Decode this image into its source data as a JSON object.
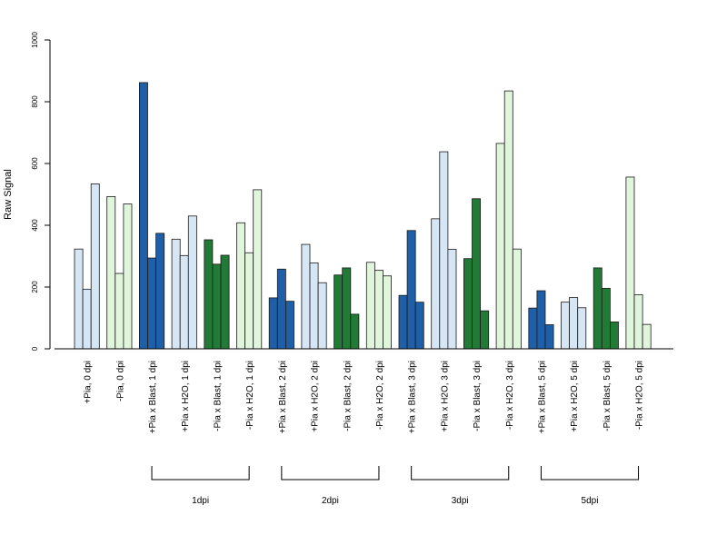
{
  "chart_data": {
    "type": "bar",
    "ylabel": "Raw Signal",
    "xlabel": "",
    "ylim": [
      0,
      1000
    ],
    "yticks": [
      0,
      200,
      400,
      600,
      800,
      1000
    ],
    "colors": {
      "plus_blast": "#1f5fa8",
      "plus_h2o": "#d6e6f5",
      "minus_blast": "#217a35",
      "minus_h2o": "#e0f5dc"
    },
    "groups": [
      {
        "label": "+Pia, 0 dpi",
        "color_key": "plus_h2o",
        "values": [
          323,
          193,
          534
        ]
      },
      {
        "label": "-Pia, 0 dpi",
        "color_key": "minus_h2o",
        "values": [
          493,
          244,
          469
        ]
      },
      {
        "label": "+Pia x Blast, 1 dpi",
        "color_key": "plus_blast",
        "values": [
          862,
          294,
          374
        ]
      },
      {
        "label": "+Pia x H2O, 1 dpi",
        "color_key": "plus_h2o",
        "values": [
          355,
          302,
          430
        ]
      },
      {
        "label": "-Pia x Blast, 1 dpi",
        "color_key": "minus_blast",
        "values": [
          353,
          274,
          303
        ]
      },
      {
        "label": "-Pia x H2O, 1 dpi",
        "color_key": "minus_h2o",
        "values": [
          408,
          311,
          515
        ]
      },
      {
        "label": "+Pia x Blast, 2 dpi",
        "color_key": "plus_blast",
        "values": [
          165,
          258,
          154
        ]
      },
      {
        "label": "+Pia x H2O, 2 dpi",
        "color_key": "plus_h2o",
        "values": [
          338,
          278,
          214
        ]
      },
      {
        "label": "-Pia x Blast, 2 dpi",
        "color_key": "minus_blast",
        "values": [
          239,
          262,
          112
        ]
      },
      {
        "label": "-Pia x H2O, 2 dpi",
        "color_key": "minus_h2o",
        "values": [
          280,
          254,
          236
        ]
      },
      {
        "label": "+Pia x Blast, 3 dpi",
        "color_key": "plus_blast",
        "values": [
          173,
          383,
          151
        ]
      },
      {
        "label": "+Pia x H2O, 3 dpi",
        "color_key": "plus_h2o",
        "values": [
          421,
          638,
          322
        ]
      },
      {
        "label": "-Pia x Blast, 3 dpi",
        "color_key": "minus_blast",
        "values": [
          292,
          486,
          123
        ]
      },
      {
        "label": "-Pia x H2O, 3 dpi",
        "color_key": "minus_h2o",
        "values": [
          665,
          835,
          323
        ]
      },
      {
        "label": "+Pia x Blast, 5 dpi",
        "color_key": "plus_blast",
        "values": [
          132,
          188,
          78
        ]
      },
      {
        "label": "+Pia x H2O, 5 dpi",
        "color_key": "plus_h2o",
        "values": [
          151,
          166,
          133
        ]
      },
      {
        "label": "-Pia x Blast, 5 dpi",
        "color_key": "minus_blast",
        "values": [
          262,
          196,
          87
        ]
      },
      {
        "label": "-Pia x H2O, 5 dpi",
        "color_key": "minus_h2o",
        "values": [
          556,
          175,
          79
        ]
      }
    ],
    "brackets": [
      {
        "label": "1dpi",
        "from_group": 2,
        "to_group": 5
      },
      {
        "label": "2dpi",
        "from_group": 6,
        "to_group": 9
      },
      {
        "label": "3dpi",
        "from_group": 10,
        "to_group": 13
      },
      {
        "label": "5dpi",
        "from_group": 14,
        "to_group": 17
      }
    ],
    "grid": false,
    "legend": "none"
  }
}
